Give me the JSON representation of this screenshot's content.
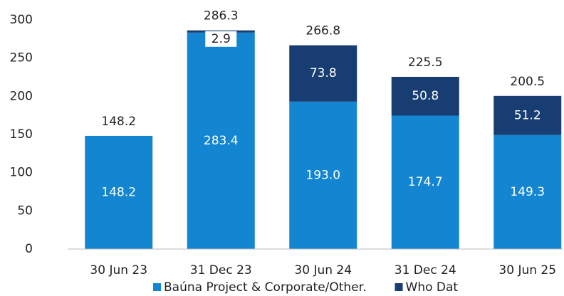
{
  "chart_data": {
    "type": "stacked_bar",
    "categories": [
      "30 Jun 23",
      "31 Dec 23",
      "30 Jun 24",
      "31 Dec 24",
      "30 Jun 25"
    ],
    "series": [
      {
        "name": "Baúna Project & Corporate/Other.",
        "color": "#1385d1",
        "values": [
          148.2,
          283.4,
          193.0,
          174.7,
          149.3
        ],
        "value_labels": [
          "148.2",
          "283.4",
          "193.0",
          "174.7",
          "149.3"
        ]
      },
      {
        "name": "Who Dat",
        "color": "#173d72",
        "values": [
          null,
          2.9,
          73.8,
          50.8,
          51.2
        ]
      }
    ],
    "totals": [
      148.2,
      286.3,
      266.8,
      225.5,
      200.5
    ],
    "ylim": [
      0,
      300
    ],
    "yticks": [
      0,
      50,
      100,
      150,
      200,
      250,
      300
    ],
    "grid": false,
    "legend": "bottom"
  }
}
